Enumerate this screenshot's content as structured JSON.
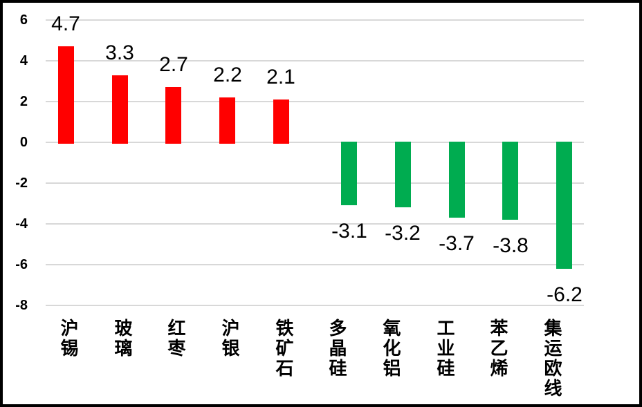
{
  "chart_data": {
    "type": "bar",
    "categories": [
      "沪锡",
      "玻璃",
      "红枣",
      "沪银",
      "铁矿石",
      "多晶硅",
      "氧化铝",
      "工业硅",
      "苯乙烯",
      "集运欧线"
    ],
    "values": [
      4.7,
      3.3,
      2.7,
      2.2,
      2.1,
      -3.1,
      -3.2,
      -3.7,
      -3.8,
      -6.2
    ],
    "data_labels": [
      "4.7",
      "3.3",
      "2.7",
      "2.2",
      "2.1",
      "-3.1",
      "-3.2",
      "-3.7",
      "-3.8",
      "-6.2"
    ],
    "y_axis": {
      "tick_labels": [
        "6",
        "4",
        "2",
        "0",
        "-2",
        "-4",
        "-6",
        "-8"
      ],
      "tick_values": [
        6,
        4,
        2,
        0,
        -2,
        -4,
        -6,
        -8
      ],
      "max": 6,
      "min": -8,
      "step": 2
    },
    "grid": true,
    "legend": "none",
    "label_position": "outside-end",
    "colors": {
      "positive_bar": "#FF0000",
      "negative_bar": "#00AC50",
      "gridline": "#D8D8D8",
      "text": "#000000",
      "background": "#FFFFFF",
      "frame_border": "#000000"
    }
  }
}
